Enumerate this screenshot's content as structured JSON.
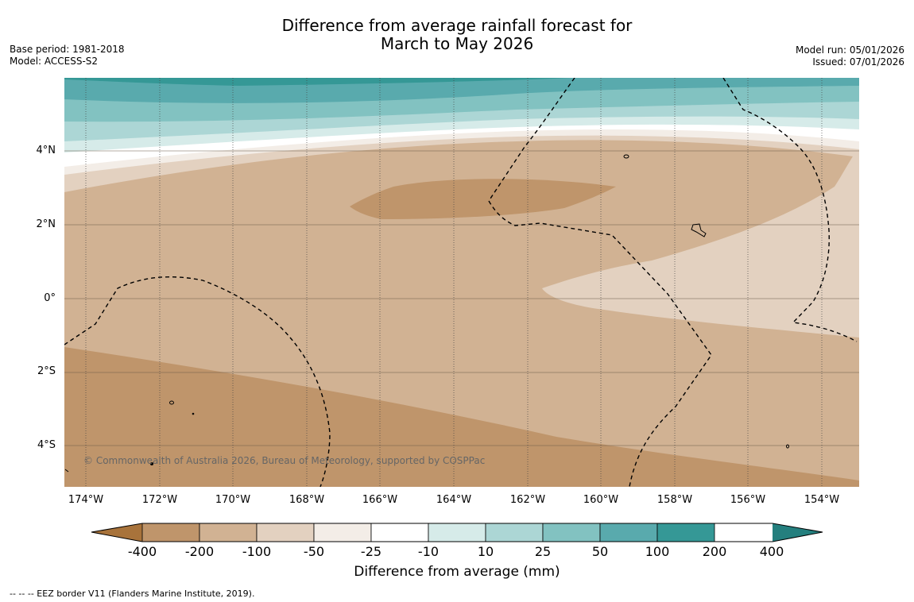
{
  "title_line1": "Difference from average rainfall forecast for",
  "title_line2": "March to May 2026",
  "meta_left": {
    "base_period": "Base period: 1981-2018",
    "model": "Model: ACCESS-S2"
  },
  "meta_right": {
    "model_run": "Model run: 05/01/2026",
    "issued": "Issued: 07/01/2026"
  },
  "lat_labels": [
    "4°N",
    "2°N",
    "0°",
    "2°S",
    "4°S"
  ],
  "lon_labels": [
    "174°W",
    "172°W",
    "170°W",
    "168°W",
    "166°W",
    "164°W",
    "162°W",
    "160°W",
    "158°W",
    "156°W",
    "154°W"
  ],
  "copyright": "© Commonwealth of Australia 2026, Bureau of Meteorology, supported by COSPPac",
  "colorbar": {
    "title": "Difference from average (mm)",
    "labels": [
      "-400",
      "-200",
      "-100",
      "-50",
      "-25",
      "-10",
      "10",
      "25",
      "50",
      "100",
      "200",
      "400"
    ],
    "colors": [
      "#a8733b",
      "#bf956b",
      "#d1b293",
      "#e3d1c0",
      "#f3ede7",
      "#ffffff",
      "#d6ebe9",
      "#acd6d5",
      "#82c2c1",
      "#59aaad",
      "#359896",
      "#247f7e"
    ]
  },
  "footer": "-- -- -- EEZ border V11 (Flanders Marine Institute, 2019)."
}
